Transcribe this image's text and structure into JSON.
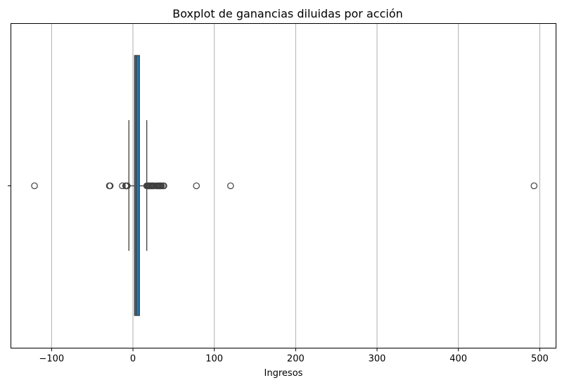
{
  "chart_data": {
    "type": "boxplot",
    "title": "Boxplot de ganancias diluidas por acción",
    "xlabel": "Ingresos",
    "ylabel": "",
    "orientation": "horizontal",
    "xlim": [
      -150,
      520
    ],
    "xticks": [
      -100,
      0,
      100,
      200,
      300,
      400,
      500
    ],
    "xtick_labels": [
      "−100",
      "0",
      "100",
      "200",
      "300",
      "400",
      "500"
    ],
    "grid": "x",
    "box": {
      "q1": 2,
      "median": 4,
      "q3": 8,
      "whisker_low": -5,
      "whisker_high": 17,
      "color": "#1f77b4"
    },
    "outliers": [
      -121,
      -29,
      -28,
      -13,
      -9,
      -8,
      -7,
      17,
      18,
      19,
      20,
      21,
      22,
      23,
      24,
      25,
      26,
      29,
      30,
      31,
      32,
      33,
      34,
      35,
      37,
      38,
      78,
      120,
      493
    ]
  }
}
